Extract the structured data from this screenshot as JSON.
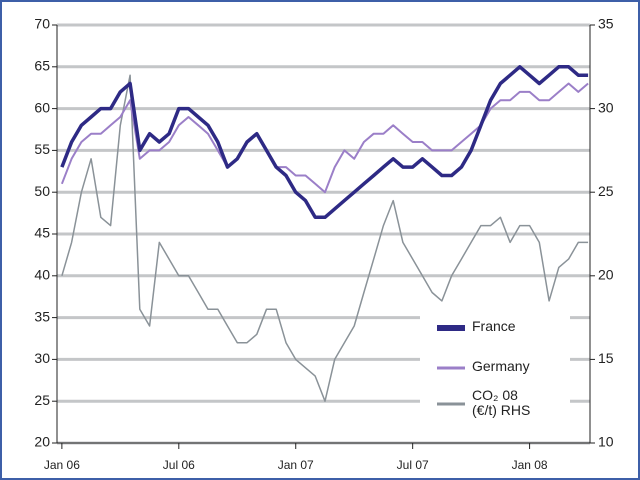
{
  "chart_data": {
    "type": "line",
    "x": [
      0,
      0.5,
      1,
      1.5,
      2,
      2.5,
      3,
      3.5,
      4,
      4.5,
      5,
      5.5,
      6,
      6.5,
      7,
      7.5,
      8,
      8.5,
      9,
      9.5,
      10,
      10.5,
      11,
      11.5,
      12,
      12.5,
      13,
      13.5,
      14,
      14.5,
      15,
      15.5,
      16,
      16.5,
      17,
      17.5,
      18,
      18.5,
      19,
      19.5,
      20,
      20.5,
      21,
      21.5,
      22,
      22.5,
      23,
      23.5,
      24,
      24.5,
      25,
      25.5,
      26,
      26.5,
      27
    ],
    "series": [
      {
        "name": "France",
        "color": "#2e2a85",
        "values": [
          53,
          56,
          58,
          59,
          60,
          60,
          62,
          63,
          55,
          57,
          56,
          57,
          60,
          60,
          59,
          58,
          56,
          53,
          54,
          56,
          57,
          55,
          53,
          52,
          50,
          49,
          47,
          47,
          48,
          49,
          50,
          51,
          52,
          53,
          54,
          53,
          53,
          54,
          53,
          52,
          52,
          53,
          55,
          58,
          61,
          63,
          64,
          65,
          64,
          63,
          64,
          65,
          65,
          64,
          64
        ]
      },
      {
        "name": "Germany",
        "color": "#9b7fc8",
        "values": [
          51,
          54,
          56,
          57,
          57,
          58,
          59,
          61,
          54,
          55,
          55,
          56,
          58,
          59,
          58,
          57,
          55,
          53,
          54,
          56,
          57,
          55,
          53,
          53,
          52,
          52,
          51,
          50,
          53,
          55,
          54,
          56,
          57,
          57,
          58,
          57,
          56,
          56,
          55,
          55,
          55,
          56,
          57,
          58,
          60,
          61,
          61,
          62,
          62,
          61,
          61,
          62,
          63,
          62,
          63
        ]
      },
      {
        "name": "CO₂ 08\n(€/t) RHS",
        "color": "#8a9298",
        "axis": "y2",
        "values": [
          20,
          22,
          25,
          27,
          23.5,
          23,
          29,
          32,
          18,
          17,
          22,
          21,
          20,
          20,
          19,
          18,
          18,
          17,
          16,
          16,
          16.5,
          18,
          18,
          16,
          15,
          14.5,
          14,
          12.5,
          15,
          16,
          17,
          19,
          21,
          23,
          24.5,
          22,
          21,
          20,
          19,
          18.5,
          20,
          21,
          22,
          23,
          23,
          23.5,
          22,
          23,
          23,
          22,
          18.5,
          20.5,
          21,
          22,
          22
        ]
      }
    ],
    "xlim": [
      -0.25,
      27.1
    ],
    "xticks": [
      {
        "value": 0,
        "label": "Jan 06"
      },
      {
        "value": 6,
        "label": "Jul 06"
      },
      {
        "value": 12,
        "label": "Jan 07"
      },
      {
        "value": 18,
        "label": "Jul 07"
      },
      {
        "value": 24,
        "label": "Jan 08"
      }
    ],
    "ylim": [
      20,
      70
    ],
    "yticks": [
      20,
      25,
      30,
      35,
      40,
      45,
      50,
      55,
      60,
      65,
      70
    ],
    "y2lim": [
      10,
      35
    ],
    "y2ticks": [
      10,
      15,
      20,
      25,
      30,
      35
    ],
    "grid": true,
    "legend": "lower right"
  }
}
